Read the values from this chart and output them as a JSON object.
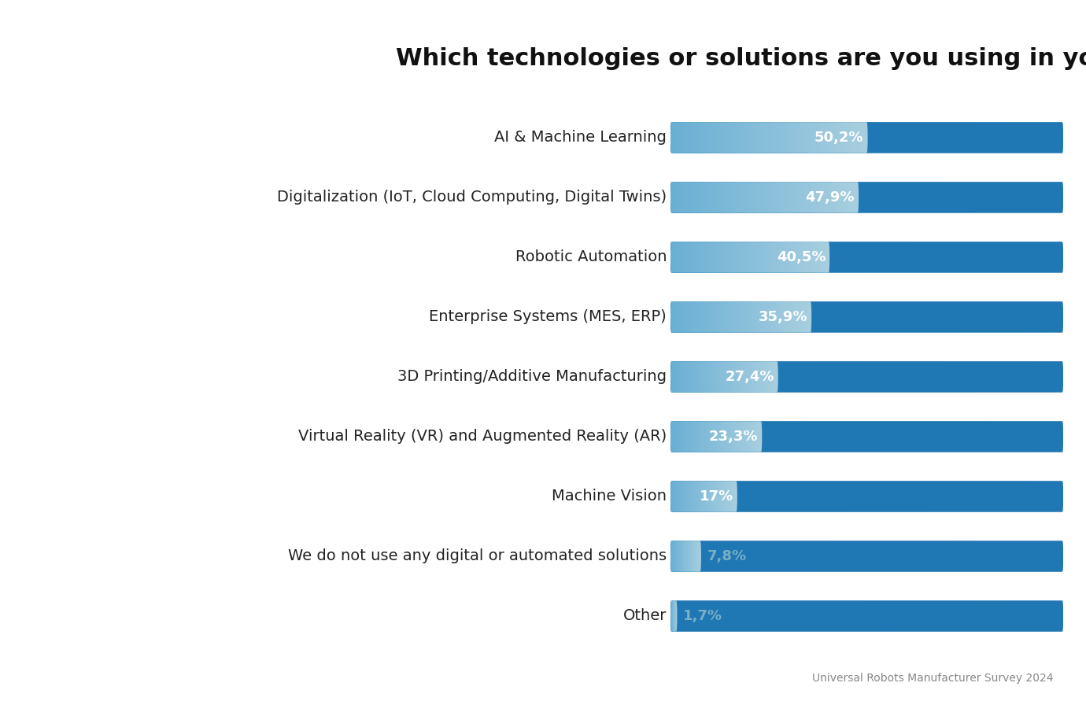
{
  "title": "Which technologies or solutions are you using in you business today?",
  "categories": [
    "AI & Machine Learning",
    "Digitalization (IoT, Cloud Computing, Digital Twins)",
    "Robotic Automation",
    "Enterprise Systems (MES, ERP)",
    "3D Printing/Additive Manufacturing",
    "Virtual Reality (VR) and Augmented Reality (AR)",
    "Machine Vision",
    "We do not use any digital or automated solutions",
    "Other"
  ],
  "values": [
    50.2,
    47.9,
    40.5,
    35.9,
    27.4,
    23.3,
    17.0,
    7.8,
    1.7
  ],
  "labels": [
    "50,2%",
    "47,9%",
    "40,5%",
    "35,9%",
    "27,4%",
    "23,3%",
    "17%",
    "7,8%",
    "1,7%"
  ],
  "bar_bg_color_left": "#c5d8e5",
  "bar_bg_color_right": "#e8f2f7",
  "bar_fill_color_left": "#6aafd4",
  "bar_fill_color_right": "#a8cfe0",
  "label_color_inside": "#ffffff",
  "label_color_outside": "#7aafc5",
  "title_fontsize": 22,
  "label_fontsize": 13,
  "category_fontsize": 14,
  "max_value": 100,
  "background_color": "#ffffff",
  "footnote": "Universal Robots Manufacturer Survey 2024",
  "bar_height": 0.52,
  "inside_threshold": 12.0
}
